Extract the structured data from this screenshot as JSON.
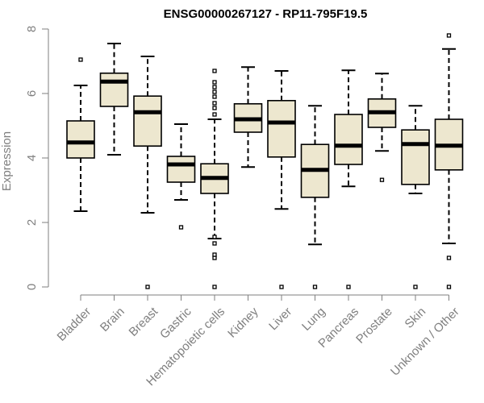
{
  "chart_data": {
    "type": "boxplot",
    "title": "ENSG00000267127 - RP11-795F19.5",
    "xlabel": "",
    "ylabel": "Expression",
    "ylim": [
      0,
      8
    ],
    "yticks": [
      0,
      2,
      4,
      6,
      8
    ],
    "box_fill": "#ede7cf",
    "categories": [
      "Bladder",
      "Brain",
      "Breast",
      "Gastric",
      "Hematopoietic cells",
      "Kidney",
      "Liver",
      "Lung",
      "Pancreas",
      "Prostate",
      "Skin",
      "Unknown / Other"
    ],
    "boxes": [
      {
        "q1": 4.0,
        "median": 4.48,
        "q3": 5.15,
        "whisker_low": 2.35,
        "whisker_high": 6.25,
        "outliers": [
          7.05
        ]
      },
      {
        "q1": 5.6,
        "median": 6.37,
        "q3": 6.63,
        "whisker_low": 4.1,
        "whisker_high": 7.55,
        "outliers": []
      },
      {
        "q1": 4.37,
        "median": 5.42,
        "q3": 5.92,
        "whisker_low": 2.3,
        "whisker_high": 7.15,
        "outliers": [
          0
        ]
      },
      {
        "q1": 3.25,
        "median": 3.8,
        "q3": 4.05,
        "whisker_low": 2.7,
        "whisker_high": 5.05,
        "outliers": [
          1.85
        ]
      },
      {
        "q1": 2.9,
        "median": 3.38,
        "q3": 3.82,
        "whisker_low": 1.5,
        "whisker_high": 5.2,
        "outliers": [
          0,
          0.9,
          1.0,
          1.35,
          1.55,
          5.35,
          5.55,
          5.7,
          5.9,
          6.05,
          6.2,
          6.35,
          6.7
        ]
      },
      {
        "q1": 4.8,
        "median": 5.2,
        "q3": 5.68,
        "whisker_low": 3.72,
        "whisker_high": 6.82,
        "outliers": []
      },
      {
        "q1": 4.03,
        "median": 5.1,
        "q3": 5.78,
        "whisker_low": 2.42,
        "whisker_high": 6.7,
        "outliers": [
          0
        ]
      },
      {
        "q1": 2.78,
        "median": 3.63,
        "q3": 4.42,
        "whisker_low": 1.32,
        "whisker_high": 5.62,
        "outliers": [
          0
        ]
      },
      {
        "q1": 3.8,
        "median": 4.38,
        "q3": 5.35,
        "whisker_low": 3.12,
        "whisker_high": 6.72,
        "outliers": [
          0
        ]
      },
      {
        "q1": 4.95,
        "median": 5.42,
        "q3": 5.83,
        "whisker_low": 4.22,
        "whisker_high": 6.62,
        "outliers": [
          3.32
        ]
      },
      {
        "q1": 3.18,
        "median": 4.43,
        "q3": 4.87,
        "whisker_low": 2.9,
        "whisker_high": 5.62,
        "outliers": [
          0
        ]
      },
      {
        "q1": 3.63,
        "median": 4.38,
        "q3": 5.2,
        "whisker_low": 1.35,
        "whisker_high": 7.38,
        "outliers": [
          0,
          0.9,
          7.8
        ]
      }
    ]
  }
}
